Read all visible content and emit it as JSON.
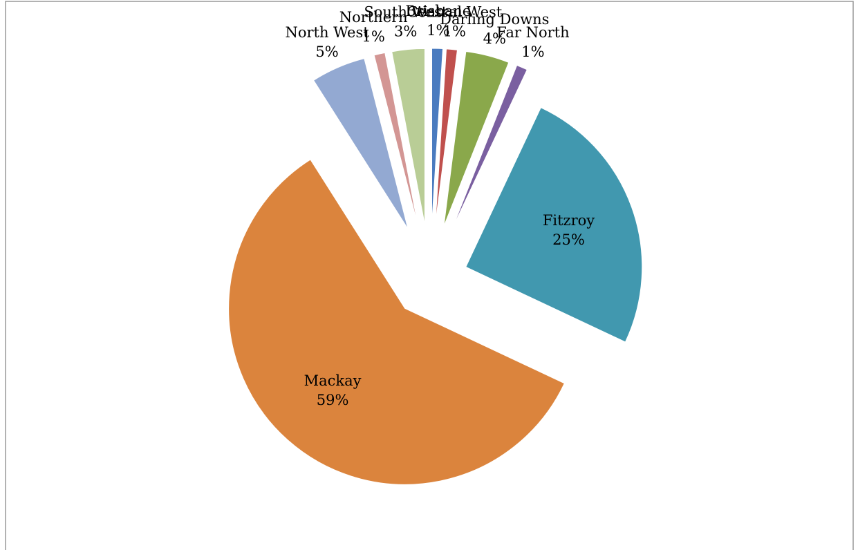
{
  "chart_data": {
    "type": "pie",
    "categories": [
      "Brisbane",
      "Central West",
      "Darling Downs",
      "Far North",
      "Fitzroy",
      "Mackay",
      "North West",
      "Northern",
      "South West"
    ],
    "values": [
      1,
      1,
      4,
      1,
      25,
      59,
      5,
      1,
      3
    ],
    "value_labels": [
      "1%",
      "1%",
      "4%",
      "1%",
      "25%",
      "59%",
      "5%",
      "1%",
      "3%"
    ],
    "colors": [
      "#4a7bbf",
      "#c0504d",
      "#8aa84b",
      "#7a5fa0",
      "#4198af",
      "#db843d",
      "#93a9d2",
      "#d39694",
      "#b9cd96"
    ]
  }
}
